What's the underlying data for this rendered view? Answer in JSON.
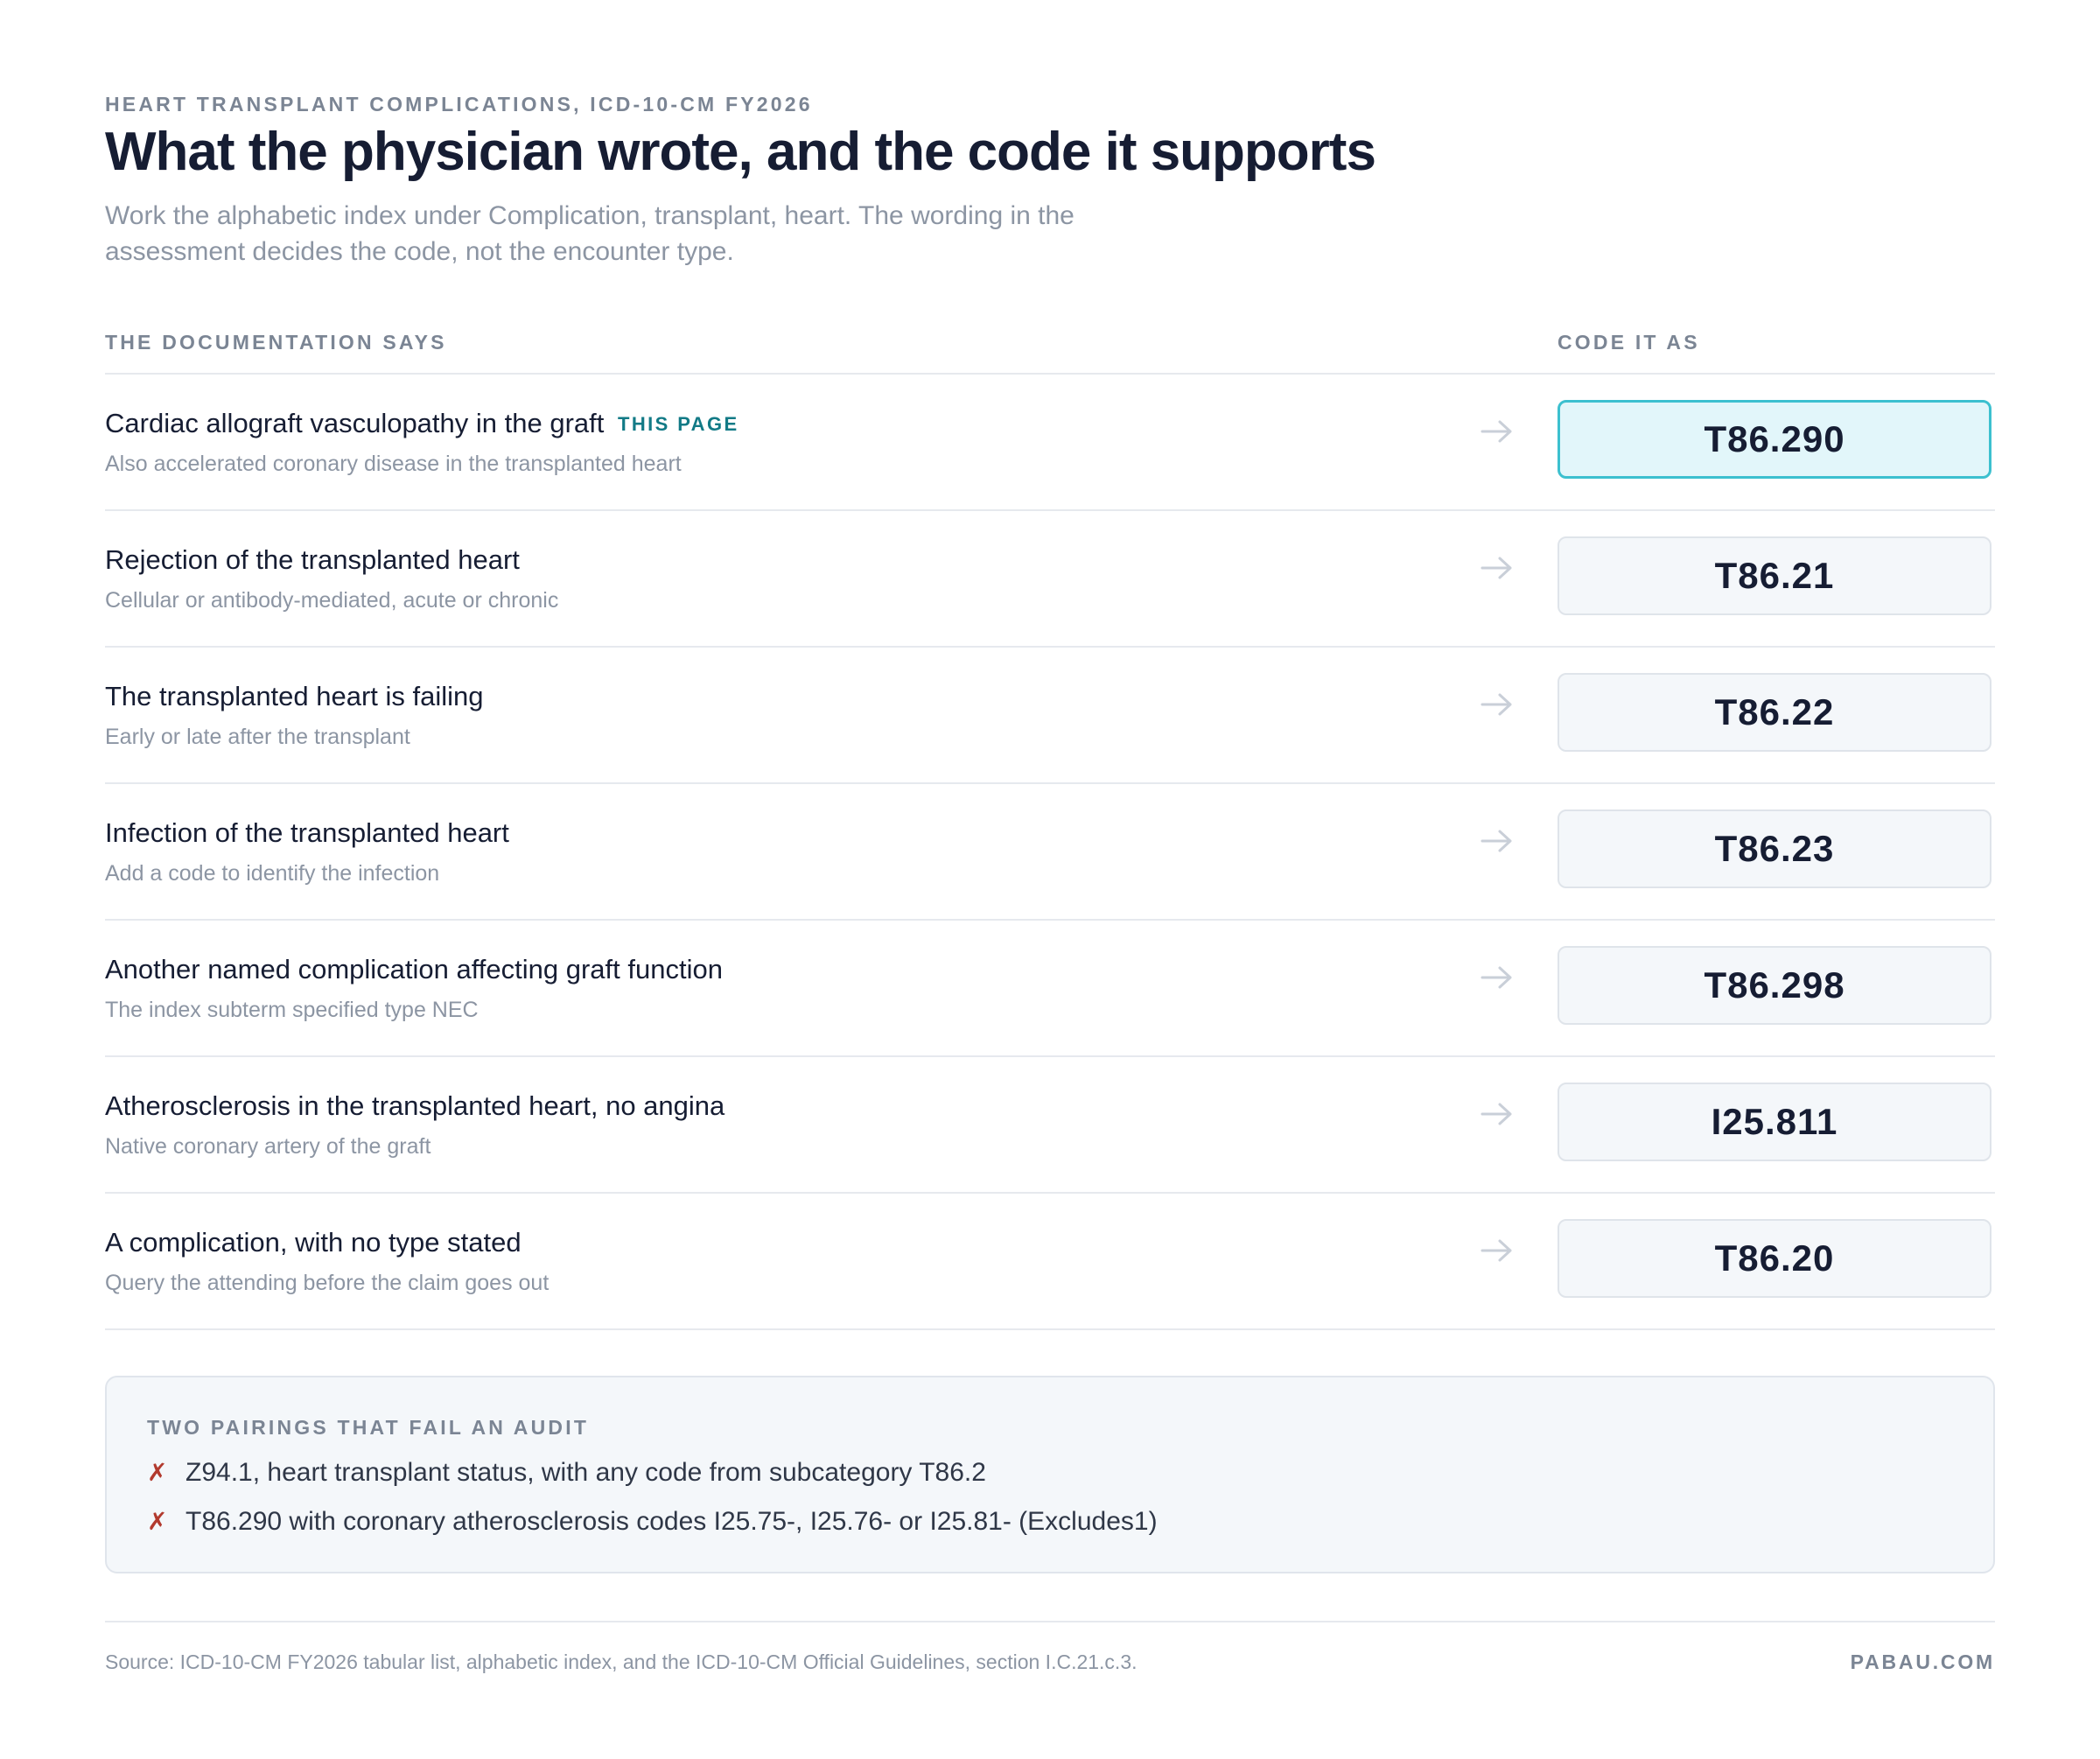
{
  "header": {
    "eyebrow": "HEART TRANSPLANT COMPLICATIONS, ICD-10-CM FY2026",
    "title": "What the physician wrote, and the code it supports",
    "subtitle": "Work the alphabetic index under Complication, transplant, heart. The wording in the assessment decides the code, not the encounter type."
  },
  "columns": {
    "left": "THE DOCUMENTATION SAYS",
    "right": "CODE IT AS"
  },
  "rows": [
    {
      "title": "Cardiac allograft vasculopathy in the graft",
      "badge": "THIS PAGE",
      "sub": "Also accelerated coronary disease in the transplanted heart",
      "code": "T86.290",
      "highlighted": true
    },
    {
      "title": "Rejection of the transplanted heart",
      "sub": "Cellular or antibody-mediated, acute or chronic",
      "code": "T86.21"
    },
    {
      "title": "The transplanted heart is failing",
      "sub": "Early or late after the transplant",
      "code": "T86.22"
    },
    {
      "title": "Infection of the transplanted heart",
      "sub": "Add a code to identify the infection",
      "code": "T86.23"
    },
    {
      "title": "Another named complication affecting graft function",
      "sub": "The index subterm specified type NEC",
      "code": "T86.298"
    },
    {
      "title": "Atherosclerosis in the transplanted heart, no angina",
      "sub": "Native coronary artery of the graft",
      "code": "I25.811"
    },
    {
      "title": "A complication, with no type stated",
      "sub": "Query the attending before the claim goes out",
      "code": "T86.20"
    }
  ],
  "audit": {
    "heading": "TWO PAIRINGS THAT FAIL AN AUDIT",
    "marker": "✗",
    "items": [
      "Z94.1, heart transplant status, with any code from subcategory T86.2",
      "T86.290 with coronary atherosclerosis codes I25.75-, I25.76- or I25.81- (Excludes1)"
    ]
  },
  "footer": {
    "source": "Source: ICD-10-CM FY2026 tabular list, alphabetic index, and the ICD-10-CM Official Guidelines, section I.C.21.c.3.",
    "brand": "PABAU.COM"
  },
  "icons": {
    "row_arrow": "arrow-right-icon",
    "audit_marker": "x-mark-icon"
  },
  "colors": {
    "accent": "#127a86",
    "highlight_fill": "#e2f6fa",
    "highlight_border": "#3cc0cf",
    "fail_mark": "#b23a2e"
  }
}
